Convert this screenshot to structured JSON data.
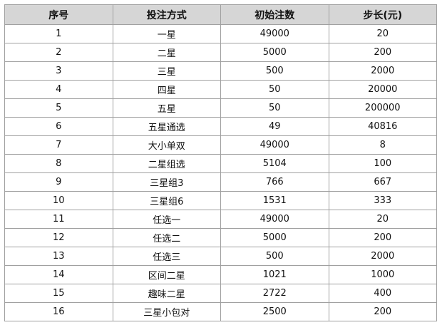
{
  "headers": [
    "序号",
    "投注方式",
    "初始注数",
    "步长(元)"
  ],
  "rows": [
    [
      "1",
      "一星",
      "49000",
      "20"
    ],
    [
      "2",
      "二星",
      "5000",
      "200"
    ],
    [
      "3",
      "三星",
      "500",
      "2000"
    ],
    [
      "4",
      "四星",
      "50",
      "20000"
    ],
    [
      "5",
      "五星",
      "50",
      "200000"
    ],
    [
      "6",
      "五星通选",
      "49",
      "40816"
    ],
    [
      "7",
      "大小单双",
      "49000",
      "8"
    ],
    [
      "8",
      "二星组选",
      "5104",
      "100"
    ],
    [
      "9",
      "三星组3",
      "766",
      "667"
    ],
    [
      "10",
      "三星组6",
      "1531",
      "333"
    ],
    [
      "11",
      "任选一",
      "49000",
      "20"
    ],
    [
      "12",
      "任选二",
      "5000",
      "200"
    ],
    [
      "13",
      "任选三",
      "500",
      "2000"
    ],
    [
      "14",
      "区间二星",
      "1021",
      "1000"
    ],
    [
      "15",
      "趣味二星",
      "2722",
      "400"
    ],
    [
      "16",
      "三星小包对",
      "2500",
      "200"
    ]
  ]
}
